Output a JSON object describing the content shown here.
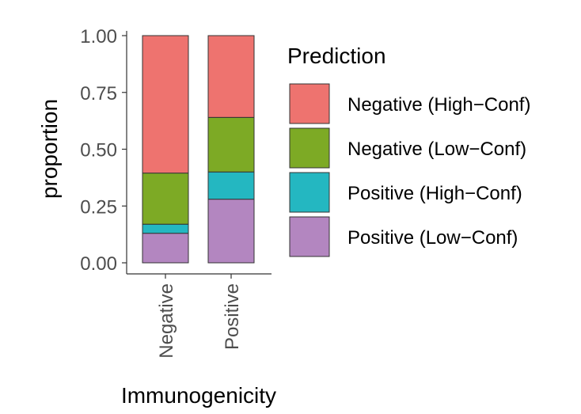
{
  "chart_data": {
    "type": "bar",
    "stacked": true,
    "xlabel": "Immunogenicity",
    "ylabel": "proportion",
    "categories": [
      "Negative",
      "Positive"
    ],
    "ylim": [
      0,
      1
    ],
    "yticks": [
      0.0,
      0.25,
      0.5,
      0.75,
      1.0
    ],
    "ytick_labels": [
      "0.00",
      "0.25",
      "0.50",
      "0.75",
      "1.00"
    ],
    "grid": false,
    "legend": {
      "title": "Prediction",
      "position": "right"
    },
    "series": [
      {
        "name": "Positive (Low−Conf)",
        "color": "#B386C0",
        "values": [
          0.13,
          0.28
        ]
      },
      {
        "name": "Positive (High−Conf)",
        "color": "#24B7C1",
        "values": [
          0.04,
          0.12
        ]
      },
      {
        "name": "Negative (Low−Conf)",
        "color": "#7DAA25",
        "values": [
          0.225,
          0.24
        ]
      },
      {
        "name": "Negative (High−Conf)",
        "color": "#EE736F",
        "values": [
          0.605,
          0.36
        ]
      }
    ],
    "legend_order": [
      "Negative (High−Conf)",
      "Negative (Low−Conf)",
      "Positive (High−Conf)",
      "Positive (Low−Conf)"
    ]
  }
}
